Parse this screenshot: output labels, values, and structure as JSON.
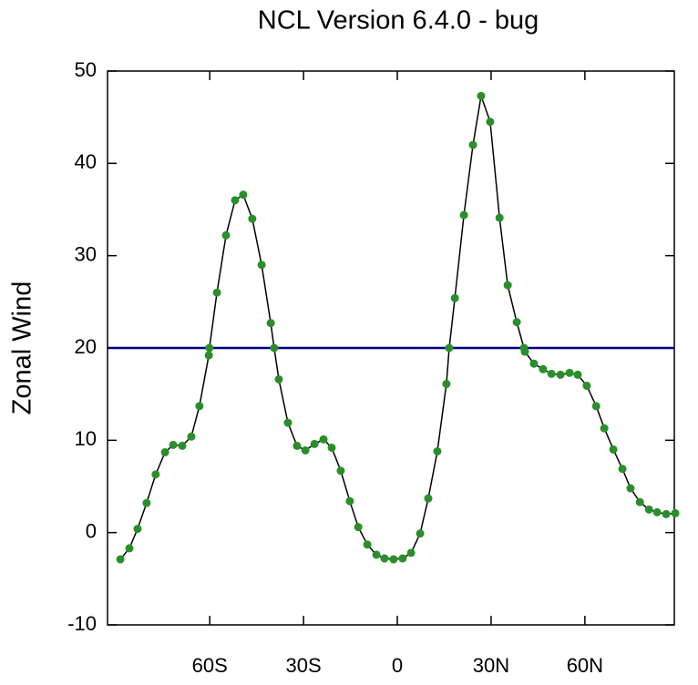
{
  "chart_data": {
    "type": "line",
    "title": "NCL Version 6.4.0 - bug",
    "y_label": "Zonal Wind",
    "x": [
      -88.6,
      -85.7,
      -83.1,
      -80.2,
      -77.3,
      -74.3,
      -71.7,
      -68.8,
      -65.9,
      -63.3,
      -60.3,
      -60.1,
      -57.7,
      -54.8,
      -51.9,
      -49.3,
      -46.4,
      -43.4,
      -40.5,
      -39.4,
      -37.9,
      -35.0,
      -32.1,
      -29.4,
      -26.5,
      -23.6,
      -21.0,
      -18.1,
      -15.2,
      -12.5,
      -9.6,
      -6.7,
      -4.1,
      -1.2,
      1.7,
      4.4,
      7.3,
      9.9,
      12.8,
      15.7,
      16.6,
      18.4,
      21.3,
      24.2,
      26.8,
      29.7,
      32.7,
      35.3,
      38.2,
      40.5,
      40.8,
      43.7,
      46.6,
      49.3,
      52.2,
      55.1,
      57.7,
      60.6,
      63.6,
      66.2,
      69.1,
      72.0,
      74.6,
      77.6,
      80.5,
      83.1,
      86.0,
      88.9
    ],
    "series": [
      {
        "line_color": "#000000",
        "color": "#2a8f2a",
        "values": [
          -2.9,
          -1.7,
          0.4,
          3.2,
          6.3,
          8.7,
          9.5,
          9.4,
          10.4,
          13.7,
          19.2,
          20.0,
          26.0,
          32.2,
          36.0,
          36.6,
          34.0,
          29.0,
          22.7,
          20.0,
          16.6,
          11.9,
          9.4,
          8.9,
          9.6,
          10.1,
          9.2,
          6.7,
          3.4,
          0.6,
          -1.3,
          -2.4,
          -2.8,
          -2.9,
          -2.8,
          -2.2,
          -0.1,
          3.7,
          8.8,
          16.1,
          20.0,
          25.4,
          34.4,
          42.0,
          47.3,
          44.5,
          34.1,
          26.8,
          22.8,
          20.0,
          19.6,
          18.3,
          17.7,
          17.2,
          17.1,
          17.3,
          17.1,
          15.9,
          13.7,
          11.3,
          9.0,
          6.9,
          4.8,
          3.3,
          2.5,
          2.2,
          2.0,
          2.1
        ]
      }
    ],
    "reference_line": {
      "value": 20,
      "color": "#000080"
    },
    "xlim": [
      -92.7,
      88.6
    ],
    "xticks": [
      {
        "value": -60,
        "label": "60S"
      },
      {
        "value": -30,
        "label": "30S"
      },
      {
        "value": 0,
        "label": "0"
      },
      {
        "value": 30,
        "label": "30N"
      },
      {
        "value": 60,
        "label": "60N"
      }
    ],
    "ylim": [
      -10,
      50
    ],
    "yticks": [
      -10,
      0,
      10,
      20,
      30,
      40,
      50
    ]
  }
}
